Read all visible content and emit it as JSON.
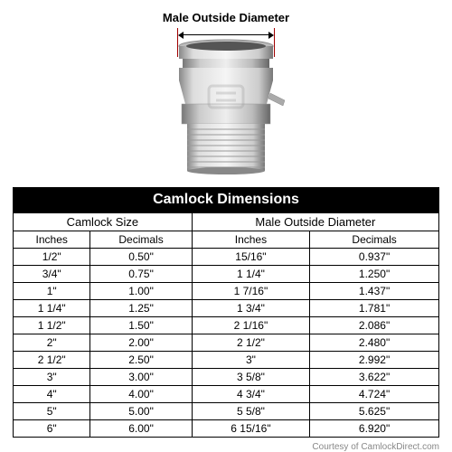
{
  "diagram": {
    "label": "Male Outside Diameter",
    "label_fontsize": 13,
    "measure_tick_color": "#a00000",
    "measure_line_color": "#000000"
  },
  "table": {
    "title": "Camlock Dimensions",
    "title_bg": "#000000",
    "title_color": "#ffffff",
    "title_fontsize": 16,
    "border_color": "#000000",
    "background_color": "#ffffff",
    "fontsize": 12,
    "group_headers": [
      "Camlock Size",
      "Male Outside Diameter"
    ],
    "sub_headers": [
      "Inches",
      "Decimals",
      "Inches",
      "Decimals"
    ],
    "rows": [
      [
        "1/2\"",
        "0.50\"",
        "15/16\"",
        "0.937\""
      ],
      [
        "3/4\"",
        "0.75\"",
        "1 1/4\"",
        "1.250\""
      ],
      [
        "1\"",
        "1.00\"",
        "1 7/16\"",
        "1.437\""
      ],
      [
        "1 1/4\"",
        "1.25\"",
        "1 3/4\"",
        "1.781\""
      ],
      [
        "1 1/2\"",
        "1.50\"",
        "2 1/16\"",
        "2.086\""
      ],
      [
        "2\"",
        "2.00\"",
        "2 1/2\"",
        "2.480\""
      ],
      [
        "2 1/2\"",
        "2.50\"",
        "3\"",
        "2.992\""
      ],
      [
        "3\"",
        "3.00\"",
        "3 5/8\"",
        "3.622\""
      ],
      [
        "4\"",
        "4.00\"",
        "4 3/4\"",
        "4.724\""
      ],
      [
        "5\"",
        "5.00\"",
        "5 5/8\"",
        "5.625\""
      ],
      [
        "6\"",
        "6.00\"",
        "6 15/16\"",
        "6.920\""
      ]
    ]
  },
  "credit": "Courtesy of CamlockDirect.com",
  "credit_color": "#888888",
  "credit_fontsize": 10
}
